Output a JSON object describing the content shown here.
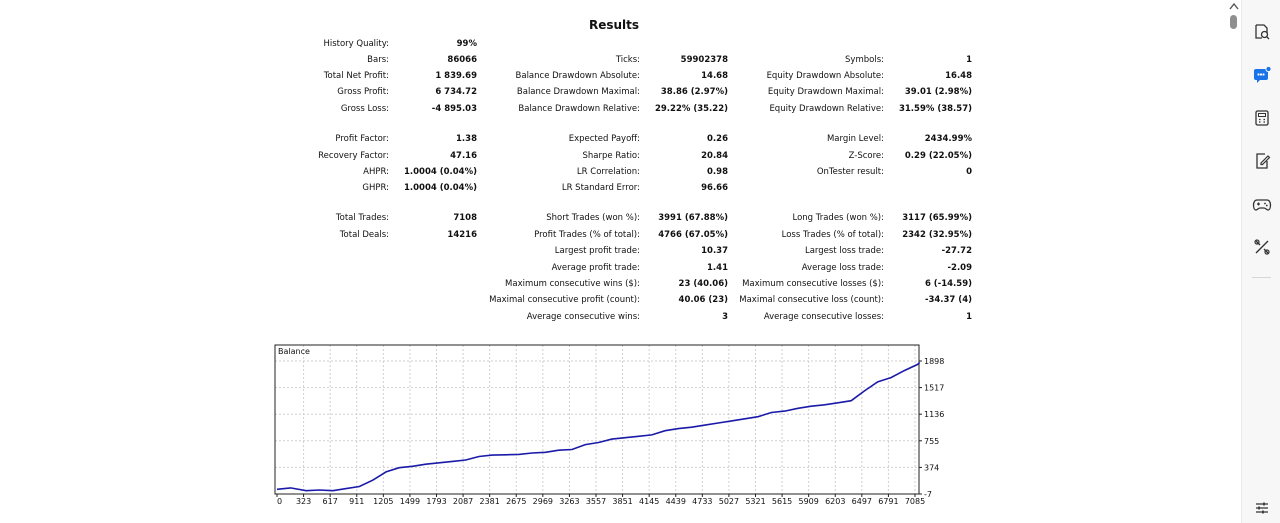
{
  "report": {
    "title": "Results",
    "stats": [
      {
        "label": "History Quality:",
        "value": "99%"
      },
      {
        "label": "Bars:",
        "value": "86066"
      },
      {
        "label": "Total Net Profit:",
        "value": "1 839.69"
      },
      {
        "label": "Gross Profit:",
        "value": "6 734.72"
      },
      {
        "label": "Gross Loss:",
        "value": "-4 895.03"
      },
      {
        "label": "Profit Factor:",
        "value": "1.38"
      },
      {
        "label": "Recovery Factor:",
        "value": "47.16"
      },
      {
        "label": "AHPR:",
        "value": "1.0004 (0.04%)"
      },
      {
        "label": "GHPR:",
        "value": "1.0004 (0.04%)"
      },
      {
        "label": "Total Trades:",
        "value": "7108"
      },
      {
        "label": "Total Deals:",
        "value": "14216"
      },
      {
        "label": "Ticks:",
        "value": "59902378"
      },
      {
        "label": "Balance Drawdown Absolute:",
        "value": "14.68"
      },
      {
        "label": "Balance Drawdown Maximal:",
        "value": "38.86 (2.97%)"
      },
      {
        "label": "Balance Drawdown Relative:",
        "value": "29.22% (35.22)"
      },
      {
        "label": "Expected Payoff:",
        "value": "0.26"
      },
      {
        "label": "Sharpe Ratio:",
        "value": "20.84"
      },
      {
        "label": "LR Correlation:",
        "value": "0.98"
      },
      {
        "label": "LR Standard Error:",
        "value": "96.66"
      },
      {
        "label": "Short Trades (won %):",
        "value": "3991 (67.88%)"
      },
      {
        "label": "Profit Trades (% of total):",
        "value": "4766 (67.05%)"
      },
      {
        "label": "Largest profit trade:",
        "value": "10.37"
      },
      {
        "label": "Average profit trade:",
        "value": "1.41"
      },
      {
        "label": "Maximum consecutive wins ($):",
        "value": "23 (40.06)"
      },
      {
        "label": "Maximal consecutive profit (count):",
        "value": "40.06 (23)"
      },
      {
        "label": "Average consecutive wins:",
        "value": "3"
      },
      {
        "label": "Symbols:",
        "value": "1"
      },
      {
        "label": "Equity Drawdown Absolute:",
        "value": "16.48"
      },
      {
        "label": "Equity Drawdown Maximal:",
        "value": "39.01 (2.98%)"
      },
      {
        "label": "Equity Drawdown Relative:",
        "value": "31.59% (38.57)"
      },
      {
        "label": "Margin Level:",
        "value": "2434.99%"
      },
      {
        "label": "Z-Score:",
        "value": "0.29 (22.05%)"
      },
      {
        "label": "OnTester result:",
        "value": "0"
      },
      {
        "label": "Long Trades (won %):",
        "value": "3117 (65.99%)"
      },
      {
        "label": "Loss Trades (% of total):",
        "value": "2342 (32.95%)"
      },
      {
        "label": "Largest loss trade:",
        "value": "-27.72"
      },
      {
        "label": "Average loss trade:",
        "value": "-2.09"
      },
      {
        "label": "Maximum consecutive losses ($):",
        "value": "6 (-14.59)"
      },
      {
        "label": "Maximal consecutive loss (count):",
        "value": "-34.37 (4)"
      },
      {
        "label": "Average consecutive losses:",
        "value": "1"
      }
    ]
  },
  "chart_data": {
    "type": "line",
    "title": "Balance",
    "xlabel": "",
    "ylabel": "",
    "x_ticks": [
      "0",
      "323",
      "617",
      "911",
      "1205",
      "1499",
      "1793",
      "2087",
      "2381",
      "2675",
      "2969",
      "3263",
      "3557",
      "3851",
      "4145",
      "4439",
      "4733",
      "5027",
      "5321",
      "5615",
      "5909",
      "6203",
      "6497",
      "6791",
      "7085"
    ],
    "y_ticks": [
      "1898",
      "1517",
      "1136",
      "755",
      "374",
      "-7"
    ],
    "xlim": [
      0,
      7108
    ],
    "ylim": [
      -7,
      1898
    ],
    "grid": true,
    "line_color": "#1a1aa8",
    "series": [
      {
        "x": [
          0,
          150,
          323,
          470,
          617,
          764,
          911,
          1058,
          1205,
          1352,
          1499,
          1646,
          1793,
          1940,
          2087,
          2234,
          2381,
          2528,
          2675,
          2822,
          2969,
          3116,
          3263,
          3410,
          3557,
          3704,
          3851,
          3998,
          4145,
          4292,
          4439,
          4586,
          4733,
          4880,
          5027,
          5174,
          5321,
          5468,
          5615,
          5762,
          5909,
          6056,
          6203,
          6350,
          6497,
          6644,
          6791,
          6938,
          7085,
          7108
        ],
        "y": [
          60,
          80,
          40,
          50,
          40,
          70,
          100,
          190,
          310,
          370,
          390,
          420,
          440,
          460,
          480,
          530,
          550,
          555,
          560,
          580,
          590,
          620,
          630,
          700,
          730,
          780,
          800,
          820,
          840,
          900,
          930,
          950,
          980,
          1010,
          1040,
          1070,
          1100,
          1160,
          1180,
          1220,
          1250,
          1270,
          1300,
          1330,
          1470,
          1600,
          1660,
          1760,
          1850,
          1880
        ]
      }
    ]
  },
  "sidebar": {
    "icons": [
      "search-icon",
      "copilot-chat-icon",
      "calculator-icon",
      "edit-note-icon",
      "gamepad-icon",
      "tools-icon",
      "settings-sliders-icon"
    ]
  }
}
